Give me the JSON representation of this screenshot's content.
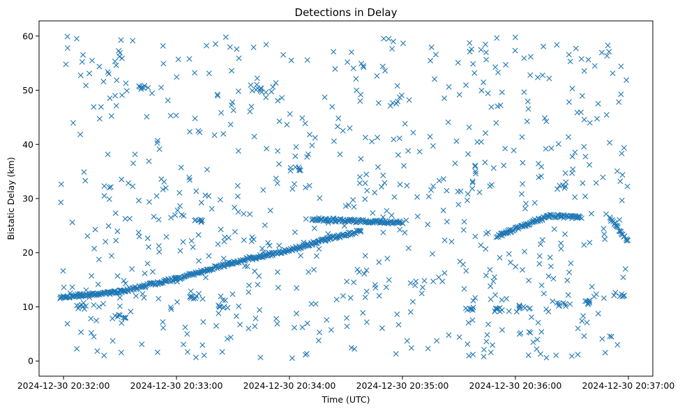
{
  "chart_data": {
    "type": "scatter",
    "title": "Detections in Delay",
    "xlabel": "Time (UTC)",
    "ylabel": "Bistatic Delay (km)",
    "x_unit": "time",
    "x_ticks": [
      "2024-12-30 20:32:00",
      "2024-12-30 20:33:00",
      "2024-12-30 20:34:00",
      "2024-12-30 20:35:00",
      "2024-12-30 20:36:00",
      "2024-12-30 20:37:00"
    ],
    "y_ticks": [
      "0",
      "10",
      "20",
      "30",
      "40",
      "50",
      "60"
    ],
    "xlim": [
      "2024-12-30 20:31:47",
      "2024-12-30 20:37:13"
    ],
    "ylim": [
      -2.8,
      62.8
    ],
    "marker": "x",
    "color": "#1f77b4",
    "grid": false,
    "legend": "none",
    "series_tracks": [
      {
        "from": [
          "2024-12-30 20:31:58",
          11.8
        ],
        "to": [
          "2024-12-30 20:32:30",
          12.8
        ]
      },
      {
        "from": [
          "2024-12-30 20:32:30",
          12.8
        ],
        "to": [
          "2024-12-30 20:33:00",
          15.2
        ]
      },
      {
        "from": [
          "2024-12-30 20:33:00",
          15.2
        ],
        "to": [
          "2024-12-30 20:33:30",
          18.2
        ]
      },
      {
        "from": [
          "2024-12-30 20:33:30",
          18.2
        ],
        "to": [
          "2024-12-30 20:34:00",
          20.5
        ]
      },
      {
        "from": [
          "2024-12-30 20:34:00",
          20.5
        ],
        "to": [
          "2024-12-30 20:34:20",
          22.5
        ]
      },
      {
        "from": [
          "2024-12-30 20:34:20",
          22.5
        ],
        "to": [
          "2024-12-30 20:34:38",
          24.0
        ]
      },
      {
        "from": [
          "2024-12-30 20:34:12",
          26.2
        ],
        "to": [
          "2024-12-30 20:35:00",
          25.5
        ]
      },
      {
        "from": [
          "2024-12-30 20:35:50",
          23.0
        ],
        "to": [
          "2024-12-30 20:36:18",
          26.8
        ]
      },
      {
        "from": [
          "2024-12-30 20:36:18",
          26.8
        ],
        "to": [
          "2024-12-30 20:36:35",
          26.5
        ]
      },
      {
        "from": [
          "2024-12-30 20:36:50",
          26.5
        ],
        "to": [
          "2024-12-30 20:37:00",
          22.0
        ]
      }
    ],
    "clusters": [
      {
        "x": "2024-12-30 20:32:10",
        "y": 10.0
      },
      {
        "x": "2024-12-30 20:32:30",
        "y": 8.2
      },
      {
        "x": "2024-12-30 20:33:08",
        "y": 11.8
      },
      {
        "x": "2024-12-30 20:33:12",
        "y": 26.0
      },
      {
        "x": "2024-12-30 20:33:25",
        "y": 10.2
      },
      {
        "x": "2024-12-30 20:35:35",
        "y": 9.8
      },
      {
        "x": "2024-12-30 20:35:50",
        "y": 9.5
      },
      {
        "x": "2024-12-30 20:36:05",
        "y": 10.0
      },
      {
        "x": "2024-12-30 20:36:25",
        "y": 10.5
      },
      {
        "x": "2024-12-30 20:36:40",
        "y": 10.8
      },
      {
        "x": "2024-12-30 20:36:55",
        "y": 12.3
      },
      {
        "x": "2024-12-30 20:32:43",
        "y": 50.5
      },
      {
        "x": "2024-12-30 20:33:45",
        "y": 50.0
      },
      {
        "x": "2024-12-30 20:34:03",
        "y": 35.5
      }
    ],
    "noise_points_approx": 720,
    "noise_y_range": [
      0.5,
      60.0
    ],
    "noise_x_range": [
      "2024-12-30 20:31:58",
      "2024-12-30 20:37:00"
    ]
  }
}
